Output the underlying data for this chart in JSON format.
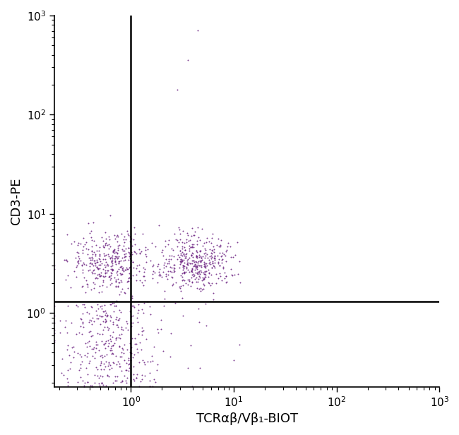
{
  "xlabel": "TCRαβ/Vβ₁-BIOT",
  "ylabel": "CD3-PE",
  "dot_color": "#6B2080",
  "dot_alpha": 0.85,
  "dot_size": 2.0,
  "xlim": [
    0.18,
    1000
  ],
  "ylim": [
    0.18,
    1000
  ],
  "gate_x": 1.0,
  "gate_y": 1.3,
  "background_color": "#ffffff",
  "seed": 42,
  "label_fontsize": 13,
  "tick_fontsize": 11
}
